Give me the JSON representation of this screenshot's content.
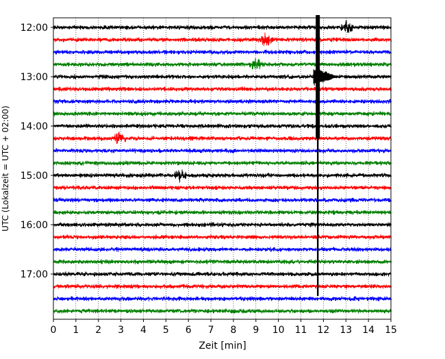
{
  "chart_data": {
    "type": "line",
    "subtype": "seismogram-helicorder",
    "title": "",
    "xlabel": "Zeit  [min]",
    "ylabel": "UTC (Lokalzeit = UTC + 02:00)",
    "xlim": [
      0,
      15
    ],
    "x_ticks": [
      "0",
      "1",
      "2",
      "3",
      "4",
      "5",
      "6",
      "7",
      "8",
      "9",
      "10",
      "11",
      "12",
      "13",
      "14",
      "15"
    ],
    "y_tick_labels": [
      "12:00",
      "13:00",
      "14:00",
      "15:00",
      "16:00",
      "17:00"
    ],
    "grid": "vertical dotted lines at each minute",
    "trace_interval_minutes": 15,
    "trace_start_times": [
      "12:00",
      "12:15",
      "12:30",
      "12:45",
      "13:00",
      "13:15",
      "13:30",
      "13:45",
      "14:00",
      "14:15",
      "14:30",
      "14:45",
      "15:00",
      "15:15",
      "15:30",
      "15:45",
      "16:00",
      "16:15",
      "16:30",
      "16:45",
      "17:00",
      "17:15",
      "17:30",
      "17:45"
    ],
    "trace_color_cycle": [
      "#000000",
      "#ff0000",
      "#0000ff",
      "#008000"
    ],
    "events": [
      {
        "description": "large earthquake signal",
        "start_time": "12:56",
        "minute": 11.75,
        "trace_range": [
          "12:00",
          "17:30"
        ],
        "peak_trace": "13:00"
      },
      {
        "trace": "12:00",
        "minute": 13.0,
        "description": "spike"
      },
      {
        "trace": "12:15",
        "minute": 9.4,
        "description": "spike"
      },
      {
        "trace": "12:45",
        "minute": 9.0,
        "description": "burst"
      },
      {
        "trace": "14:15",
        "minute": 2.9,
        "description": "burst"
      },
      {
        "trace": "15:00",
        "minute": 5.6,
        "description": "small burst"
      }
    ]
  }
}
